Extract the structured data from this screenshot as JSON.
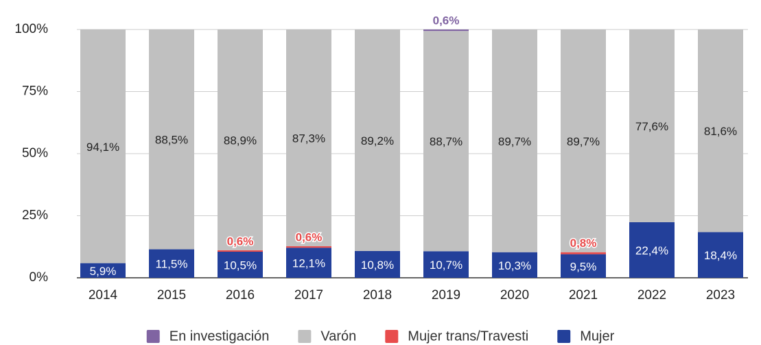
{
  "chart_data": {
    "type": "stacked_bar",
    "categories": [
      "2014",
      "2015",
      "2016",
      "2017",
      "2018",
      "2019",
      "2020",
      "2021",
      "2022",
      "2023"
    ],
    "series": [
      {
        "name": "En investigación",
        "color": "#8064a2",
        "values": [
          null,
          null,
          null,
          null,
          null,
          0.6,
          null,
          null,
          null,
          null
        ],
        "value_labels": [
          null,
          null,
          null,
          null,
          null,
          "0,6%",
          null,
          null,
          null,
          null
        ]
      },
      {
        "name": "Varón",
        "color": "#c0c0c0",
        "values": [
          94.1,
          88.5,
          88.9,
          87.3,
          89.2,
          88.7,
          89.7,
          89.7,
          77.6,
          81.6
        ],
        "value_labels": [
          "94,1%",
          "88,5%",
          "88,9%",
          "87,3%",
          "89,2%",
          "88,7%",
          "89,7%",
          "89,7%",
          "77,6%",
          "81,6%"
        ]
      },
      {
        "name": "Mujer trans/Travesti",
        "color": "#e84c4c",
        "values": [
          null,
          null,
          0.6,
          0.6,
          null,
          null,
          null,
          0.8,
          null,
          null
        ],
        "value_labels": [
          null,
          null,
          "0,6%",
          "0,6%",
          null,
          null,
          null,
          "0,8%",
          null,
          null
        ]
      },
      {
        "name": "Mujer",
        "color": "#23409a",
        "values": [
          5.9,
          11.5,
          10.5,
          12.1,
          10.8,
          10.7,
          10.3,
          9.5,
          22.4,
          18.4
        ],
        "value_labels": [
          "5,9%",
          "11,5%",
          "10,5%",
          "12,1%",
          "10,8%",
          "10,7%",
          "10,3%",
          "9,5%",
          "22,4%",
          "18,4%"
        ]
      }
    ],
    "ylim": [
      0,
      100
    ],
    "yticks": [
      {
        "value": 0,
        "label": "0%"
      },
      {
        "value": 25,
        "label": "25%"
      },
      {
        "value": 50,
        "label": "50%"
      },
      {
        "value": 75,
        "label": "75%"
      },
      {
        "value": 100,
        "label": "100%"
      }
    ],
    "grid": true,
    "legend": "bottom"
  }
}
